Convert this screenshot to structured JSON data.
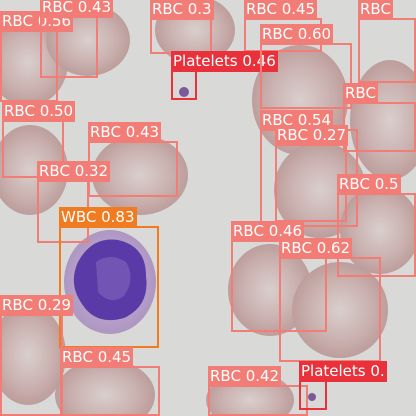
{
  "image": {
    "description": "Blood smear micrograph with object detection bounding boxes"
  },
  "colors": {
    "background": "#d9dad7",
    "rbc_fill": "#c6a8a6",
    "rbc_center": "#d6c8c6",
    "wbc_cytoplasm": "#b9a6cc",
    "wbc_nucleus": "#5a3aa6",
    "platelet": "#7a5a9a",
    "rbc_box": "#f27d76",
    "wbc_box": "#f07b20",
    "platelet_box": "#e8313a"
  },
  "detections": [
    {
      "id": "rbc-056",
      "class": "RBC",
      "label": "RBC 0.56"
    },
    {
      "id": "rbc-043-top",
      "class": "RBC",
      "label": "RBC 0.43"
    },
    {
      "id": "rbc-03-top",
      "class": "RBC",
      "label": "RBC 0.3"
    },
    {
      "id": "rbc-045-top",
      "class": "RBC",
      "label": "RBC 0.45"
    },
    {
      "id": "platelets-046",
      "class": "Platelets",
      "label": "Platelets 0.46"
    },
    {
      "id": "rbc-060",
      "class": "RBC",
      "label": "RBC 0.60"
    },
    {
      "id": "rbc-right-top",
      "class": "RBC",
      "label": "RBC"
    },
    {
      "id": "rbc-050",
      "class": "RBC",
      "label": "RBC 0.50"
    },
    {
      "id": "rbc-043-mid",
      "class": "RBC",
      "label": "RBC 0.43"
    },
    {
      "id": "rbc-right-mid",
      "class": "RBC",
      "label": "RBC"
    },
    {
      "id": "rbc-054",
      "class": "RBC",
      "label": "RBC 0.54"
    },
    {
      "id": "rbc-027",
      "class": "RBC",
      "label": "RBC 0.27"
    },
    {
      "id": "rbc-032",
      "class": "RBC",
      "label": "RBC 0.32"
    },
    {
      "id": "rbc-05-right",
      "class": "RBC",
      "label": "RBC 0.5"
    },
    {
      "id": "wbc-083",
      "class": "WBC",
      "label": "WBC 0.83"
    },
    {
      "id": "rbc-046",
      "class": "RBC",
      "label": "RBC 0.46"
    },
    {
      "id": "rbc-062",
      "class": "RBC",
      "label": "RBC 0.62"
    },
    {
      "id": "rbc-029",
      "class": "RBC",
      "label": "RBC 0.29"
    },
    {
      "id": "rbc-045-bottom",
      "class": "RBC",
      "label": "RBC 0.45"
    },
    {
      "id": "rbc-042",
      "class": "RBC",
      "label": "RBC 0.42"
    },
    {
      "id": "platelets-bottom",
      "class": "Platelets",
      "label": "Platelets 0."
    }
  ]
}
